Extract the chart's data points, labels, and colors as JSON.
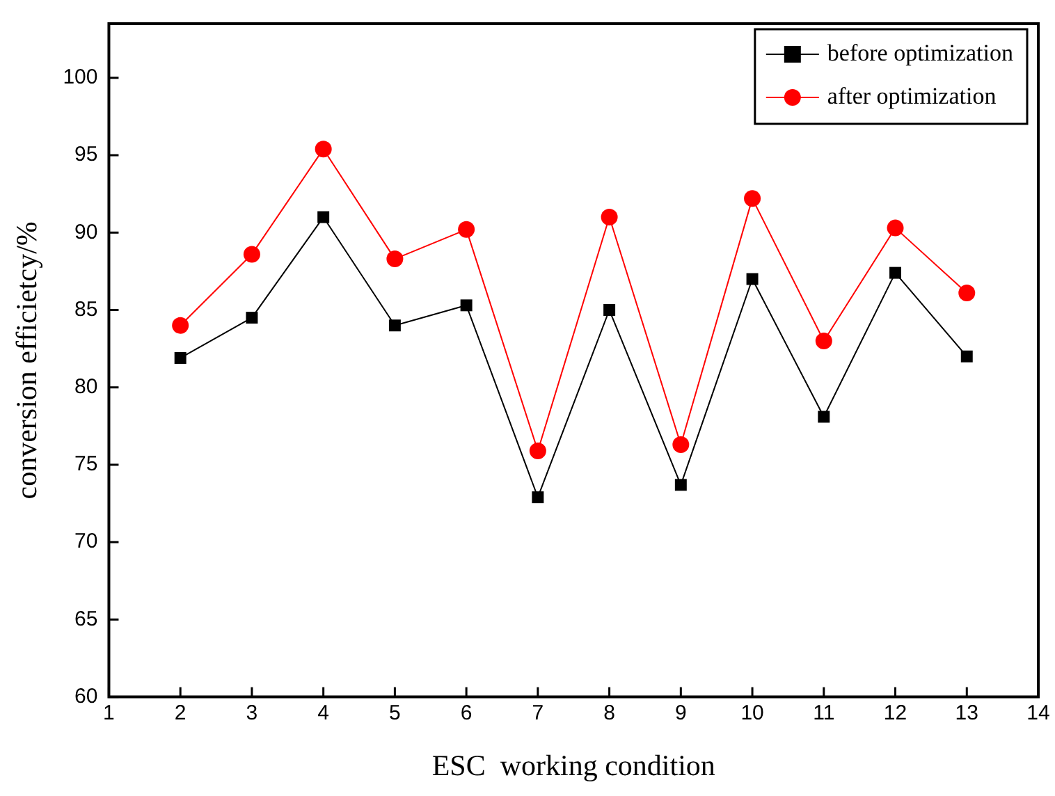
{
  "chart_data": {
    "type": "line",
    "x": [
      2,
      3,
      4,
      5,
      6,
      7,
      8,
      9,
      10,
      11,
      12,
      13
    ],
    "series": [
      {
        "name": "before optimization",
        "color": "#000000",
        "marker": "square",
        "values": [
          81.9,
          84.5,
          91,
          84,
          85.3,
          72.9,
          85,
          73.7,
          87,
          78.1,
          87.4,
          82
        ]
      },
      {
        "name": "after optimization",
        "color": "#ff0000",
        "marker": "circle",
        "values": [
          84,
          88.6,
          95.4,
          88.3,
          90.2,
          75.9,
          91,
          76.3,
          92.2,
          83,
          90.3,
          86.1
        ]
      }
    ],
    "xlabel": "ESC  working condition",
    "ylabel": "conversion efficietcy/%",
    "xlim": [
      1,
      14
    ],
    "xticks": [
      1,
      2,
      3,
      4,
      5,
      6,
      7,
      8,
      9,
      10,
      11,
      12,
      13,
      14
    ],
    "ylim": [
      60,
      103.5
    ],
    "yticks": [
      60,
      65,
      70,
      75,
      80,
      85,
      90,
      95,
      100
    ],
    "grid": false,
    "legend": "top right",
    "line_style": "solid"
  }
}
